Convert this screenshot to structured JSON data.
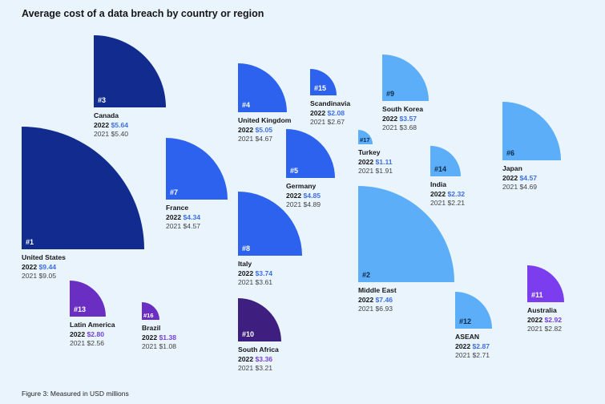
{
  "chart_data": {
    "type": "quarter-circle bubble",
    "title": "Average cost of a data breach by country or region",
    "caption": "Figure 3: Measured in USD millions",
    "unit": "USD millions",
    "year_current": "2022",
    "year_previous": "2021",
    "colors": {
      "navy": "#112c8e",
      "blue": "#2c62ee",
      "lightblue": "#5baef7",
      "purple": "#6a2fc2",
      "darkpurple": "#3e1f80",
      "violet": "#7b3ded",
      "value_blue": "#3d6fe6",
      "value_purple": "#7440d8"
    },
    "items": [
      {
        "rank": "#1",
        "name": "United States",
        "v2022": "$9.44",
        "v2021": "$9.05",
        "color": "navy"
      },
      {
        "rank": "#2",
        "name": "Middle East",
        "v2022": "$7.46",
        "v2021": "$6.93",
        "color": "lightblue"
      },
      {
        "rank": "#3",
        "name": "Canada",
        "v2022": "$5.64",
        "v2021": "$5.40",
        "color": "navy"
      },
      {
        "rank": "#4",
        "name": "United Kingdom",
        "v2022": "$5.05",
        "v2021": "$4.67",
        "color": "blue"
      },
      {
        "rank": "#5",
        "name": "Germany",
        "v2022": "$4.85",
        "v2021": "$4.89",
        "color": "blue"
      },
      {
        "rank": "#6",
        "name": "Japan",
        "v2022": "$4.57",
        "v2021": "$4.69",
        "color": "lightblue"
      },
      {
        "rank": "#7",
        "name": "France",
        "v2022": "$4.34",
        "v2021": "$4.57",
        "color": "blue"
      },
      {
        "rank": "#8",
        "name": "Italy",
        "v2022": "$3.74",
        "v2021": "$3.61",
        "color": "blue"
      },
      {
        "rank": "#9",
        "name": "South Korea",
        "v2022": "$3.57",
        "v2021": "$3.68",
        "color": "lightblue"
      },
      {
        "rank": "#10",
        "name": "South Africa",
        "v2022": "$3.36",
        "v2021": "$3.21",
        "color": "darkpurple"
      },
      {
        "rank": "#11",
        "name": "Australia",
        "v2022": "$2.92",
        "v2021": "$2.82",
        "color": "violet"
      },
      {
        "rank": "#12",
        "name": "ASEAN",
        "v2022": "$2.87",
        "v2021": "$2.71",
        "color": "lightblue"
      },
      {
        "rank": "#13",
        "name": "Latin America",
        "v2022": "$2.80",
        "v2021": "$2.56",
        "color": "purple"
      },
      {
        "rank": "#14",
        "name": "India",
        "v2022": "$2.32",
        "v2021": "$2.21",
        "color": "lightblue"
      },
      {
        "rank": "#15",
        "name": "Scandinavia",
        "v2022": "$2.08",
        "v2021": "$2.67",
        "color": "blue"
      },
      {
        "rank": "#16",
        "name": "Brazil",
        "v2022": "$1.38",
        "v2021": "$1.08",
        "color": "purple"
      },
      {
        "rank": "#17",
        "name": "Turkey",
        "v2022": "$1.11",
        "v2021": "$1.91",
        "color": "lightblue"
      }
    ]
  }
}
